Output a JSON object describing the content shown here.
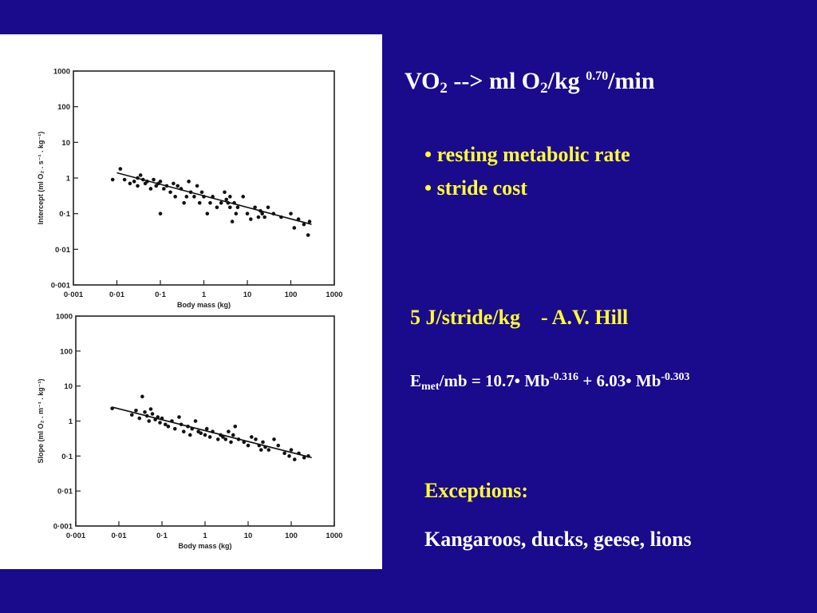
{
  "slide": {
    "heading": {
      "p1": "VO",
      "sub1": "2",
      "p2": " --> ml O",
      "sub2": "2",
      "p3": "/kg ",
      "sup": "0.70",
      "p4": "/min"
    },
    "bullets": [
      "• resting metabolic rate",
      "• stride cost"
    ],
    "hill": {
      "left": "5 J/stride/kg",
      "right": "-  A.V. Hill"
    },
    "equation": {
      "lhs": "E",
      "lhs_sub": "met",
      "rhs1": "/mb = 10.7• Mb",
      "exp1": "-0.316",
      "rhs2": " + 6.03• Mb",
      "exp2": "-0.303"
    },
    "exceptions_title": "Exceptions:",
    "exceptions_list": "Kangaroos, ducks, geese, lions"
  },
  "colors": {
    "background": "#1a0a8c",
    "accent": "#ffff33",
    "text": "#ffffff",
    "figure_bg": "#ffffff"
  },
  "chart_data": [
    {
      "type": "scatter",
      "xlabel": "Body mass (kg)",
      "ylabel": "Intercept (ml O₂ . s⁻¹ . kg⁻¹)",
      "x_scale": "log",
      "y_scale": "log",
      "xlim": [
        0.001,
        1000
      ],
      "ylim": [
        0.001,
        1000
      ],
      "x_ticks": [
        "0·001",
        "0·01",
        "0·1",
        "1",
        "10",
        "100",
        "1000"
      ],
      "y_ticks": [
        "0·001",
        "0·01",
        "0·1",
        "1",
        "10",
        "100",
        "1000"
      ],
      "fit_line": {
        "x": [
          0.01,
          300
        ],
        "y": [
          1.4,
          0.05
        ]
      },
      "points": [
        [
          0.008,
          0.9
        ],
        [
          0.012,
          1.8
        ],
        [
          0.015,
          0.9
        ],
        [
          0.02,
          0.7
        ],
        [
          0.025,
          0.8
        ],
        [
          0.03,
          1.0
        ],
        [
          0.03,
          0.6
        ],
        [
          0.035,
          1.2
        ],
        [
          0.04,
          0.9
        ],
        [
          0.045,
          0.7
        ],
        [
          0.05,
          0.8
        ],
        [
          0.06,
          0.5
        ],
        [
          0.07,
          0.9
        ],
        [
          0.08,
          0.6
        ],
        [
          0.09,
          0.7
        ],
        [
          0.1,
          0.1
        ],
        [
          0.1,
          0.8
        ],
        [
          0.12,
          0.5
        ],
        [
          0.14,
          0.6
        ],
        [
          0.17,
          0.4
        ],
        [
          0.2,
          0.7
        ],
        [
          0.22,
          0.3
        ],
        [
          0.25,
          0.6
        ],
        [
          0.3,
          0.5
        ],
        [
          0.35,
          0.2
        ],
        [
          0.4,
          0.3
        ],
        [
          0.45,
          0.8
        ],
        [
          0.5,
          0.4
        ],
        [
          0.6,
          0.3
        ],
        [
          0.7,
          0.6
        ],
        [
          0.8,
          0.2
        ],
        [
          0.9,
          0.4
        ],
        [
          1,
          0.3
        ],
        [
          1.2,
          0.1
        ],
        [
          1.4,
          0.2
        ],
        [
          1.6,
          0.3
        ],
        [
          2,
          0.15
        ],
        [
          2.5,
          0.2
        ],
        [
          3,
          0.4
        ],
        [
          3.3,
          0.25
        ],
        [
          3.6,
          0.2
        ],
        [
          4,
          0.15
        ],
        [
          4,
          0.3
        ],
        [
          4.5,
          0.06
        ],
        [
          5,
          0.2
        ],
        [
          5.5,
          0.1
        ],
        [
          6,
          0.15
        ],
        [
          8,
          0.3
        ],
        [
          10,
          0.1
        ],
        [
          12,
          0.07
        ],
        [
          15,
          0.15
        ],
        [
          18,
          0.08
        ],
        [
          20,
          0.12
        ],
        [
          22,
          0.1
        ],
        [
          25,
          0.08
        ],
        [
          30,
          0.15
        ],
        [
          40,
          0.1
        ],
        [
          60,
          0.08
        ],
        [
          100,
          0.1
        ],
        [
          120,
          0.04
        ],
        [
          150,
          0.07
        ],
        [
          200,
          0.05
        ],
        [
          250,
          0.025
        ],
        [
          270,
          0.06
        ]
      ]
    },
    {
      "type": "scatter",
      "xlabel": "Body mass (kg)",
      "ylabel": "Slope (ml O₂ . m⁻¹ . kg⁻¹)",
      "x_scale": "log",
      "y_scale": "log",
      "xlim": [
        0.001,
        1000
      ],
      "ylim": [
        0.001,
        1000
      ],
      "x_ticks": [
        "0·001",
        "0·01",
        "0·1",
        "1",
        "10",
        "100",
        "1000"
      ],
      "y_ticks": [
        "0·001",
        "0·01",
        "0·1",
        "1",
        "10",
        "100",
        "1000"
      ],
      "fit_line": {
        "x": [
          0.007,
          300
        ],
        "y": [
          2.5,
          0.09
        ]
      },
      "points": [
        [
          0.007,
          2.3
        ],
        [
          0.02,
          1.5
        ],
        [
          0.025,
          2.0
        ],
        [
          0.03,
          1.2
        ],
        [
          0.035,
          5.0
        ],
        [
          0.04,
          1.8
        ],
        [
          0.045,
          1.4
        ],
        [
          0.05,
          1.0
        ],
        [
          0.055,
          2.2
        ],
        [
          0.06,
          1.6
        ],
        [
          0.07,
          1.1
        ],
        [
          0.08,
          1.3
        ],
        [
          0.09,
          0.9
        ],
        [
          0.1,
          1.2
        ],
        [
          0.12,
          0.8
        ],
        [
          0.14,
          0.7
        ],
        [
          0.17,
          1.0
        ],
        [
          0.2,
          0.6
        ],
        [
          0.25,
          1.3
        ],
        [
          0.28,
          0.8
        ],
        [
          0.32,
          0.5
        ],
        [
          0.4,
          0.7
        ],
        [
          0.45,
          0.4
        ],
        [
          0.5,
          0.6
        ],
        [
          0.6,
          1.0
        ],
        [
          0.7,
          0.5
        ],
        [
          0.8,
          0.45
        ],
        [
          1,
          0.4
        ],
        [
          1.1,
          0.6
        ],
        [
          1.3,
          0.35
        ],
        [
          1.5,
          0.5
        ],
        [
          2,
          0.3
        ],
        [
          2.3,
          0.4
        ],
        [
          2.6,
          0.35
        ],
        [
          3,
          0.3
        ],
        [
          3.5,
          0.5
        ],
        [
          4,
          0.25
        ],
        [
          4.5,
          0.4
        ],
        [
          5,
          0.7
        ],
        [
          6,
          0.3
        ],
        [
          8,
          0.25
        ],
        [
          10,
          0.2
        ],
        [
          12,
          0.35
        ],
        [
          15,
          0.3
        ],
        [
          18,
          0.2
        ],
        [
          20,
          0.15
        ],
        [
          22,
          0.25
        ],
        [
          25,
          0.18
        ],
        [
          30,
          0.15
        ],
        [
          40,
          0.3
        ],
        [
          50,
          0.2
        ],
        [
          70,
          0.12
        ],
        [
          90,
          0.1
        ],
        [
          100,
          0.15
        ],
        [
          120,
          0.08
        ],
        [
          150,
          0.12
        ],
        [
          200,
          0.09
        ],
        [
          250,
          0.1
        ]
      ]
    }
  ]
}
